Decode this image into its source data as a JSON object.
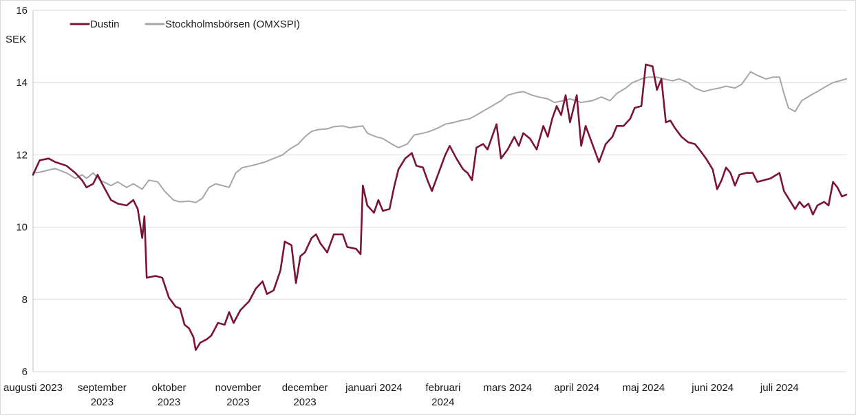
{
  "chart_data": {
    "type": "line",
    "ylabel": "SEK",
    "ylim": [
      6,
      16
    ],
    "yticks": [
      6,
      8,
      10,
      12,
      14,
      16
    ],
    "grid": "horizontal",
    "legend_position": "top-left",
    "x_range": [
      "2023-08-01",
      "2024-07-31"
    ],
    "month_labels": [
      {
        "date": "2023-08-01",
        "lines": [
          "augusti 2023"
        ]
      },
      {
        "date": "2023-09-01",
        "lines": [
          "september",
          "2023"
        ]
      },
      {
        "date": "2023-10-01",
        "lines": [
          "oktober",
          "2023"
        ]
      },
      {
        "date": "2023-11-01",
        "lines": [
          "november",
          "2023"
        ]
      },
      {
        "date": "2023-12-01",
        "lines": [
          "december",
          "2023"
        ]
      },
      {
        "date": "2024-01-01",
        "lines": [
          "januari 2024"
        ]
      },
      {
        "date": "2024-02-01",
        "lines": [
          "februari",
          "2024"
        ]
      },
      {
        "date": "2024-03-01",
        "lines": [
          "mars 2024"
        ]
      },
      {
        "date": "2024-04-01",
        "lines": [
          "april 2024"
        ]
      },
      {
        "date": "2024-05-01",
        "lines": [
          "maj 2024"
        ]
      },
      {
        "date": "2024-06-01",
        "lines": [
          "juni 2024"
        ]
      },
      {
        "date": "2024-07-01",
        "lines": [
          "juli 2024"
        ]
      }
    ],
    "series": [
      {
        "name": "Stockholmsbörsen (OMXSPI)",
        "color": "#a6a6a6",
        "points": [
          [
            "2023-08-01",
            11.5
          ],
          [
            "2023-08-04",
            11.52
          ],
          [
            "2023-08-08",
            11.58
          ],
          [
            "2023-08-11",
            11.62
          ],
          [
            "2023-08-16",
            11.5
          ],
          [
            "2023-08-20",
            11.35
          ],
          [
            "2023-08-23",
            11.45
          ],
          [
            "2023-08-25",
            11.35
          ],
          [
            "2023-08-28",
            11.5
          ],
          [
            "2023-08-31",
            11.3
          ],
          [
            "2023-09-05",
            11.15
          ],
          [
            "2023-09-08",
            11.25
          ],
          [
            "2023-09-12",
            11.1
          ],
          [
            "2023-09-15",
            11.2
          ],
          [
            "2023-09-19",
            11.05
          ],
          [
            "2023-09-22",
            11.3
          ],
          [
            "2023-09-26",
            11.25
          ],
          [
            "2023-09-29",
            11.0
          ],
          [
            "2023-10-03",
            10.75
          ],
          [
            "2023-10-06",
            10.7
          ],
          [
            "2023-10-10",
            10.72
          ],
          [
            "2023-10-13",
            10.68
          ],
          [
            "2023-10-16",
            10.8
          ],
          [
            "2023-10-19",
            11.1
          ],
          [
            "2023-10-22",
            11.2
          ],
          [
            "2023-10-25",
            11.15
          ],
          [
            "2023-10-28",
            11.1
          ],
          [
            "2023-10-31",
            11.5
          ],
          [
            "2023-11-03",
            11.65
          ],
          [
            "2023-11-07",
            11.7
          ],
          [
            "2023-11-10",
            11.75
          ],
          [
            "2023-11-13",
            11.8
          ],
          [
            "2023-11-17",
            11.9
          ],
          [
            "2023-11-21",
            12.0
          ],
          [
            "2023-11-24",
            12.15
          ],
          [
            "2023-11-28",
            12.3
          ],
          [
            "2023-12-01",
            12.5
          ],
          [
            "2023-12-04",
            12.65
          ],
          [
            "2023-12-07",
            12.7
          ],
          [
            "2023-12-11",
            12.72
          ],
          [
            "2023-12-14",
            12.78
          ],
          [
            "2023-12-18",
            12.8
          ],
          [
            "2023-12-21",
            12.75
          ],
          [
            "2023-12-27",
            12.8
          ],
          [
            "2023-12-29",
            12.6
          ],
          [
            "2024-01-02",
            12.5
          ],
          [
            "2024-01-05",
            12.45
          ],
          [
            "2024-01-09",
            12.3
          ],
          [
            "2024-01-12",
            12.2
          ],
          [
            "2024-01-16",
            12.3
          ],
          [
            "2024-01-19",
            12.55
          ],
          [
            "2024-01-23",
            12.6
          ],
          [
            "2024-01-26",
            12.65
          ],
          [
            "2024-01-30",
            12.75
          ],
          [
            "2024-02-02",
            12.85
          ],
          [
            "2024-02-06",
            12.9
          ],
          [
            "2024-02-09",
            12.95
          ],
          [
            "2024-02-13",
            13.0
          ],
          [
            "2024-02-16",
            13.1
          ],
          [
            "2024-02-20",
            13.25
          ],
          [
            "2024-02-23",
            13.35
          ],
          [
            "2024-02-27",
            13.5
          ],
          [
            "2024-03-01",
            13.65
          ],
          [
            "2024-03-05",
            13.72
          ],
          [
            "2024-03-08",
            13.75
          ],
          [
            "2024-03-12",
            13.65
          ],
          [
            "2024-03-15",
            13.6
          ],
          [
            "2024-03-19",
            13.55
          ],
          [
            "2024-03-22",
            13.45
          ],
          [
            "2024-03-26",
            13.5
          ],
          [
            "2024-03-29",
            13.55
          ],
          [
            "2024-04-03",
            13.45
          ],
          [
            "2024-04-08",
            13.5
          ],
          [
            "2024-04-12",
            13.6
          ],
          [
            "2024-04-16",
            13.5
          ],
          [
            "2024-04-19",
            13.7
          ],
          [
            "2024-04-23",
            13.85
          ],
          [
            "2024-04-26",
            14.0
          ],
          [
            "2024-04-30",
            14.1
          ],
          [
            "2024-05-03",
            14.15
          ],
          [
            "2024-05-07",
            14.15
          ],
          [
            "2024-05-10",
            14.1
          ],
          [
            "2024-05-14",
            14.05
          ],
          [
            "2024-05-17",
            14.1
          ],
          [
            "2024-05-21",
            14.0
          ],
          [
            "2024-05-24",
            13.85
          ],
          [
            "2024-05-28",
            13.75
          ],
          [
            "2024-05-31",
            13.8
          ],
          [
            "2024-06-04",
            13.85
          ],
          [
            "2024-06-07",
            13.9
          ],
          [
            "2024-06-11",
            13.85
          ],
          [
            "2024-06-14",
            13.95
          ],
          [
            "2024-06-18",
            14.3
          ],
          [
            "2024-06-21",
            14.2
          ],
          [
            "2024-06-25",
            14.1
          ],
          [
            "2024-06-28",
            14.15
          ],
          [
            "2024-07-01",
            14.15
          ],
          [
            "2024-07-03",
            13.7
          ],
          [
            "2024-07-05",
            13.3
          ],
          [
            "2024-07-08",
            13.2
          ],
          [
            "2024-07-11",
            13.5
          ],
          [
            "2024-07-15",
            13.65
          ],
          [
            "2024-07-18",
            13.75
          ],
          [
            "2024-07-22",
            13.9
          ],
          [
            "2024-07-25",
            14.0
          ],
          [
            "2024-07-28",
            14.05
          ],
          [
            "2024-07-31",
            14.1
          ]
        ]
      },
      {
        "name": "Dustin",
        "color": "#7a1432",
        "points": [
          [
            "2023-08-01",
            11.45
          ],
          [
            "2023-08-04",
            11.85
          ],
          [
            "2023-08-08",
            11.9
          ],
          [
            "2023-08-11",
            11.8
          ],
          [
            "2023-08-16",
            11.7
          ],
          [
            "2023-08-20",
            11.5
          ],
          [
            "2023-08-23",
            11.3
          ],
          [
            "2023-08-25",
            11.1
          ],
          [
            "2023-08-28",
            11.2
          ],
          [
            "2023-08-30",
            11.45
          ],
          [
            "2023-09-01",
            11.2
          ],
          [
            "2023-09-05",
            10.75
          ],
          [
            "2023-09-08",
            10.65
          ],
          [
            "2023-09-12",
            10.6
          ],
          [
            "2023-09-15",
            10.75
          ],
          [
            "2023-09-17",
            10.5
          ],
          [
            "2023-09-19",
            9.7
          ],
          [
            "2023-09-20",
            10.3
          ],
          [
            "2023-09-21",
            8.6
          ],
          [
            "2023-09-25",
            8.65
          ],
          [
            "2023-09-28",
            8.6
          ],
          [
            "2023-10-01",
            8.05
          ],
          [
            "2023-10-04",
            7.8
          ],
          [
            "2023-10-06",
            7.75
          ],
          [
            "2023-10-08",
            7.3
          ],
          [
            "2023-10-10",
            7.2
          ],
          [
            "2023-10-12",
            6.95
          ],
          [
            "2023-10-13",
            6.6
          ],
          [
            "2023-10-15",
            6.8
          ],
          [
            "2023-10-18",
            6.9
          ],
          [
            "2023-10-20",
            7.0
          ],
          [
            "2023-10-23",
            7.35
          ],
          [
            "2023-10-26",
            7.3
          ],
          [
            "2023-10-28",
            7.65
          ],
          [
            "2023-10-30",
            7.35
          ],
          [
            "2023-11-02",
            7.7
          ],
          [
            "2023-11-06",
            7.95
          ],
          [
            "2023-11-09",
            8.3
          ],
          [
            "2023-11-12",
            8.5
          ],
          [
            "2023-11-14",
            8.15
          ],
          [
            "2023-11-17",
            8.25
          ],
          [
            "2023-11-20",
            8.8
          ],
          [
            "2023-11-22",
            9.6
          ],
          [
            "2023-11-25",
            9.5
          ],
          [
            "2023-11-27",
            8.45
          ],
          [
            "2023-11-29",
            9.2
          ],
          [
            "2023-12-01",
            9.3
          ],
          [
            "2023-12-04",
            9.7
          ],
          [
            "2023-12-06",
            9.8
          ],
          [
            "2023-12-08",
            9.55
          ],
          [
            "2023-12-11",
            9.3
          ],
          [
            "2023-12-14",
            9.8
          ],
          [
            "2023-12-18",
            9.8
          ],
          [
            "2023-12-20",
            9.45
          ],
          [
            "2023-12-24",
            9.4
          ],
          [
            "2023-12-26",
            9.25
          ],
          [
            "2023-12-27",
            11.15
          ],
          [
            "2023-12-29",
            10.6
          ],
          [
            "2024-01-01",
            10.4
          ],
          [
            "2024-01-03",
            10.75
          ],
          [
            "2024-01-05",
            10.45
          ],
          [
            "2024-01-08",
            10.5
          ],
          [
            "2024-01-10",
            11.1
          ],
          [
            "2024-01-12",
            11.6
          ],
          [
            "2024-01-15",
            11.9
          ],
          [
            "2024-01-18",
            12.05
          ],
          [
            "2024-01-20",
            11.7
          ],
          [
            "2024-01-23",
            11.65
          ],
          [
            "2024-01-25",
            11.3
          ],
          [
            "2024-01-27",
            11.0
          ],
          [
            "2024-01-30",
            11.5
          ],
          [
            "2024-02-02",
            12.0
          ],
          [
            "2024-02-04",
            12.25
          ],
          [
            "2024-02-07",
            11.9
          ],
          [
            "2024-02-10",
            11.6
          ],
          [
            "2024-02-12",
            11.5
          ],
          [
            "2024-02-14",
            11.3
          ],
          [
            "2024-02-16",
            12.2
          ],
          [
            "2024-02-19",
            12.3
          ],
          [
            "2024-02-21",
            12.15
          ],
          [
            "2024-02-23",
            12.5
          ],
          [
            "2024-02-25",
            12.85
          ],
          [
            "2024-02-27",
            11.9
          ],
          [
            "2024-03-01",
            12.15
          ],
          [
            "2024-03-04",
            12.5
          ],
          [
            "2024-03-06",
            12.25
          ],
          [
            "2024-03-08",
            12.6
          ],
          [
            "2024-03-11",
            12.45
          ],
          [
            "2024-03-14",
            12.15
          ],
          [
            "2024-03-17",
            12.8
          ],
          [
            "2024-03-19",
            12.5
          ],
          [
            "2024-03-21",
            13.0
          ],
          [
            "2024-03-23",
            13.35
          ],
          [
            "2024-03-25",
            13.1
          ],
          [
            "2024-03-27",
            13.65
          ],
          [
            "2024-03-29",
            12.9
          ],
          [
            "2024-04-01",
            13.65
          ],
          [
            "2024-04-03",
            12.25
          ],
          [
            "2024-04-05",
            12.8
          ],
          [
            "2024-04-08",
            12.3
          ],
          [
            "2024-04-11",
            11.8
          ],
          [
            "2024-04-14",
            12.3
          ],
          [
            "2024-04-17",
            12.5
          ],
          [
            "2024-04-19",
            12.8
          ],
          [
            "2024-04-22",
            12.8
          ],
          [
            "2024-04-25",
            13.0
          ],
          [
            "2024-04-27",
            13.3
          ],
          [
            "2024-04-30",
            13.35
          ],
          [
            "2024-05-02",
            14.5
          ],
          [
            "2024-05-05",
            14.45
          ],
          [
            "2024-05-07",
            13.8
          ],
          [
            "2024-05-09",
            14.1
          ],
          [
            "2024-05-11",
            12.9
          ],
          [
            "2024-05-13",
            12.95
          ],
          [
            "2024-05-15",
            12.75
          ],
          [
            "2024-05-18",
            12.5
          ],
          [
            "2024-05-21",
            12.35
          ],
          [
            "2024-05-24",
            12.3
          ],
          [
            "2024-05-26",
            12.15
          ],
          [
            "2024-05-29",
            11.9
          ],
          [
            "2024-06-01",
            11.6
          ],
          [
            "2024-06-03",
            11.05
          ],
          [
            "2024-06-05",
            11.3
          ],
          [
            "2024-06-07",
            11.65
          ],
          [
            "2024-06-09",
            11.5
          ],
          [
            "2024-06-11",
            11.15
          ],
          [
            "2024-06-13",
            11.45
          ],
          [
            "2024-06-16",
            11.5
          ],
          [
            "2024-06-19",
            11.5
          ],
          [
            "2024-06-21",
            11.25
          ],
          [
            "2024-06-24",
            11.3
          ],
          [
            "2024-06-27",
            11.35
          ],
          [
            "2024-07-01",
            11.5
          ],
          [
            "2024-07-03",
            11.0
          ],
          [
            "2024-07-06",
            10.7
          ],
          [
            "2024-07-08",
            10.5
          ],
          [
            "2024-07-10",
            10.7
          ],
          [
            "2024-07-12",
            10.55
          ],
          [
            "2024-07-14",
            10.65
          ],
          [
            "2024-07-16",
            10.35
          ],
          [
            "2024-07-18",
            10.6
          ],
          [
            "2024-07-21",
            10.7
          ],
          [
            "2024-07-23",
            10.6
          ],
          [
            "2024-07-25",
            11.25
          ],
          [
            "2024-07-27",
            11.1
          ],
          [
            "2024-07-29",
            10.85
          ],
          [
            "2024-07-31",
            10.9
          ]
        ]
      }
    ]
  }
}
